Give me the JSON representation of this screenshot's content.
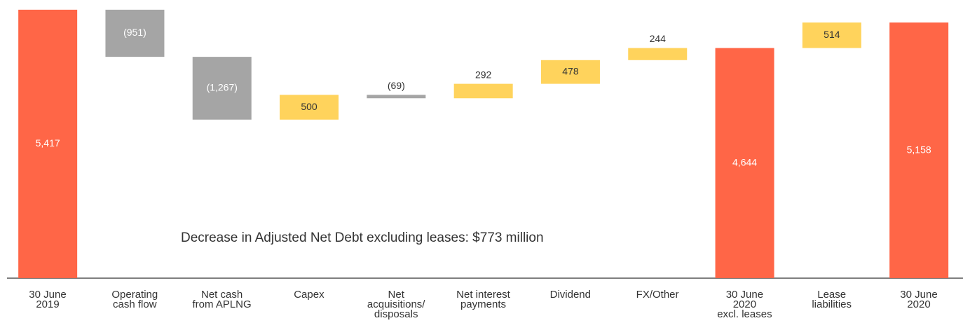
{
  "chart_data": {
    "type": "waterfall",
    "categories": [
      "30 June\n2019",
      "Operating\ncash flow",
      "Net cash\nfrom APLNG",
      "Capex",
      "Net\nacquisitions/\ndisposals",
      "Net interest\npayments",
      "Dividend",
      "FX/Other",
      "30 June\n2020\nexcl. leases",
      "Lease\nliabilities",
      "30 June\n2020"
    ],
    "values": [
      5417,
      -951,
      -1267,
      500,
      -69,
      292,
      478,
      244,
      4644,
      514,
      5158
    ],
    "value_labels": [
      "5,417",
      "(951)",
      "(1,267)",
      "500",
      "(69)",
      "292",
      "478",
      "244",
      "4,644",
      "514",
      "5,158"
    ],
    "measure": [
      "absolute",
      "relative",
      "relative",
      "relative",
      "relative",
      "relative",
      "relative",
      "relative",
      "absolute",
      "relative",
      "absolute"
    ],
    "colors": [
      "#ff6647",
      "#a5a5a5",
      "#a5a5a5",
      "#ffd35c",
      "#a5a5a5",
      "#ffd35c",
      "#ffd35c",
      "#ffd35c",
      "#ff6647",
      "#ffd35c",
      "#ff6647"
    ],
    "ylim": [
      0,
      5500
    ],
    "annotation": "Decrease in Adjusted Net Debt excluding leases: $773 million"
  }
}
